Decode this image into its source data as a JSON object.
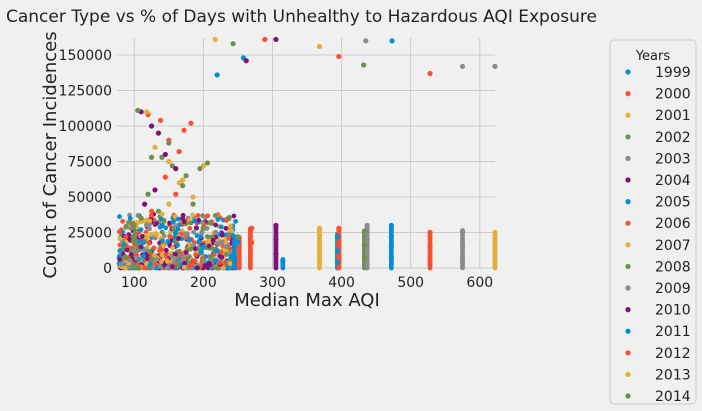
{
  "chart_data": {
    "type": "scatter",
    "title": "Cancer Type vs % of Days with Unhealthy to Hazardous AQI Exposure",
    "xlabel": "Median Max AQI",
    "ylabel": "Count of Cancer Incidences",
    "xlim": [
      75,
      622
    ],
    "ylim": [
      0,
      162000
    ],
    "xticks": [
      100,
      200,
      300,
      400,
      500,
      600
    ],
    "xtick_labels": [
      "100",
      "200",
      "300",
      "400",
      "500",
      "600"
    ],
    "yticks": [
      0,
      25000,
      50000,
      75000,
      100000,
      125000,
      150000
    ],
    "ytick_labels": [
      "0",
      "25000",
      "50000",
      "75000",
      "100000",
      "125000",
      "150000"
    ],
    "grid": true,
    "legend": {
      "title": "Years",
      "placement": "right-outside"
    },
    "series": [
      {
        "name": "1999",
        "color": "#008fd5",
        "points": [
          [
            220,
            136000
          ],
          [
            258,
            148000
          ],
          [
            473,
            160000
          ],
          [
            472,
            30000
          ],
          [
            472,
            22000
          ],
          [
            472,
            15000
          ],
          [
            472,
            8000
          ]
        ]
      },
      {
        "name": "2000",
        "color": "#fc4f30",
        "points": [
          [
            289,
            161000
          ],
          [
            528,
            137000
          ],
          [
            270,
            28000
          ],
          [
            270,
            18000
          ],
          [
            528,
            25000
          ],
          [
            528,
            15000
          ],
          [
            528,
            6000
          ]
        ]
      },
      {
        "name": "2001",
        "color": "#e5ae38",
        "points": [
          [
            217,
            161000
          ],
          [
            368,
            156000
          ],
          [
            368,
            28000
          ],
          [
            368,
            19000
          ],
          [
            368,
            10000
          ],
          [
            368,
            4000
          ]
        ]
      },
      {
        "name": "2002",
        "color": "#6d904f",
        "points": [
          [
            243,
            158000
          ],
          [
            432,
            143000
          ],
          [
            433,
            26000
          ],
          [
            433,
            16000
          ],
          [
            433,
            7000
          ]
        ]
      },
      {
        "name": "2003",
        "color": "#8b8b8b",
        "points": [
          [
            435,
            160000
          ],
          [
            575,
            142000
          ],
          [
            622,
            142000
          ],
          [
            437,
            30000
          ],
          [
            437,
            20000
          ],
          [
            575,
            26000
          ],
          [
            575,
            15000
          ],
          [
            575,
            6000
          ]
        ]
      },
      {
        "name": "2004",
        "color": "#810f7c",
        "points": [
          [
            262,
            146000
          ],
          [
            305,
            161000
          ],
          [
            305,
            30000
          ],
          [
            305,
            20000
          ],
          [
            305,
            10000
          ]
        ]
      },
      {
        "name": "2005",
        "color": "#008fd5",
        "points": [
          [
            245,
            22000
          ],
          [
            250,
            18000
          ],
          [
            315,
            5000
          ],
          [
            394,
            22000
          ],
          [
            394,
            12000
          ],
          [
            394,
            4000
          ]
        ]
      },
      {
        "name": "2006",
        "color": "#fc4f30",
        "points": [
          [
            396,
            149000
          ],
          [
            396,
            28000
          ],
          [
            396,
            18000
          ],
          [
            396,
            8000
          ],
          [
            268,
            22000
          ],
          [
            268,
            12000
          ]
        ]
      },
      {
        "name": "2007",
        "color": "#e5ae38",
        "points": [
          [
            622,
            25000
          ],
          [
            622,
            12000
          ],
          [
            622,
            5000
          ],
          [
            150,
            45000
          ],
          [
            165,
            60000
          ]
        ]
      },
      {
        "name": "2008",
        "color": "#6d904f",
        "points": [
          [
            140,
            78000
          ],
          [
            155,
            72000
          ],
          [
            175,
            65000
          ],
          [
            120,
            52000
          ],
          [
            135,
            40000
          ],
          [
            110,
            35000
          ],
          [
            200,
            28000
          ],
          [
            250,
            22000
          ]
        ]
      },
      {
        "name": "2009",
        "color": "#8b8b8b",
        "points": [
          [
            205,
            28000
          ],
          [
            218,
            25000
          ],
          [
            226,
            18000
          ],
          [
            233,
            15000
          ],
          [
            238,
            10000
          ]
        ]
      },
      {
        "name": "2010",
        "color": "#810f7c",
        "points": [
          [
            110,
            110000
          ],
          [
            125,
            100000
          ],
          [
            135,
            95000
          ],
          [
            145,
            80000
          ],
          [
            160,
            70000
          ],
          [
            130,
            55000
          ],
          [
            115,
            45000
          ],
          [
            170,
            35000
          ]
        ]
      },
      {
        "name": "2011",
        "color": "#008fd5",
        "points": [
          [
            140,
            30000
          ],
          [
            160,
            25000
          ],
          [
            180,
            20000
          ],
          [
            200,
            15000
          ],
          [
            220,
            12000
          ],
          [
            240,
            8000
          ]
        ]
      },
      {
        "name": "2012",
        "color": "#fc4f30",
        "points": [
          [
            120,
            108000
          ],
          [
            138,
            104000
          ],
          [
            150,
            90000
          ],
          [
            165,
            82000
          ],
          [
            172,
            97000
          ],
          [
            182,
            102000
          ],
          [
            145,
            64000
          ],
          [
            160,
            52000
          ],
          [
            125,
            40000
          ]
        ]
      },
      {
        "name": "2013",
        "color": "#e5ae38",
        "points": [
          [
            118,
            110000
          ],
          [
            130,
            85000
          ],
          [
            150,
            75000
          ],
          [
            170,
            62000
          ],
          [
            200,
            72000
          ],
          [
            185,
            50000
          ],
          [
            140,
            38000
          ]
        ]
      },
      {
        "name": "2014",
        "color": "#6d904f",
        "points": [
          [
            105,
            111000
          ],
          [
            125,
            78000
          ],
          [
            150,
            88000
          ],
          [
            170,
            58000
          ],
          [
            195,
            70000
          ],
          [
            206,
            74000
          ],
          [
            185,
            45000
          ],
          [
            100,
            30000
          ]
        ]
      }
    ]
  }
}
